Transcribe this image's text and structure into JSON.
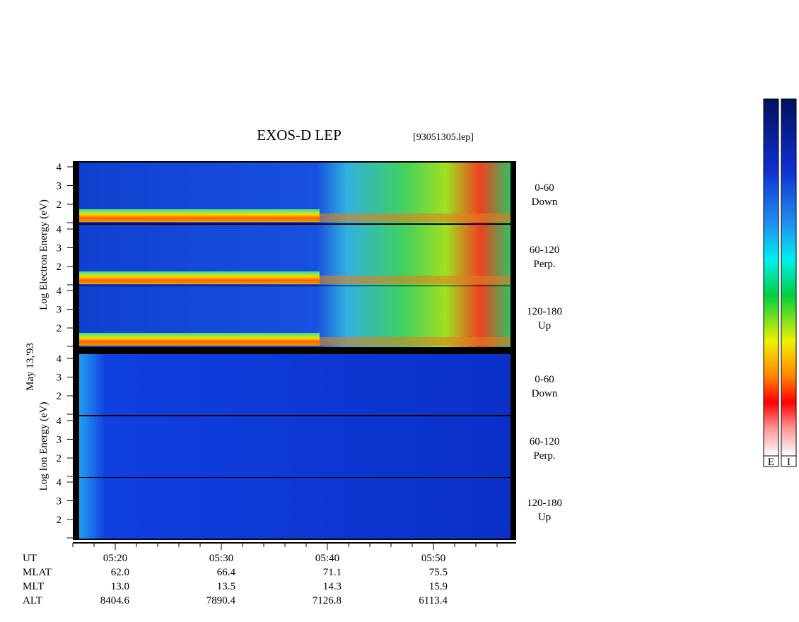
{
  "header": {
    "title": "EXOS-D LEP",
    "file": "[93051305.lep]"
  },
  "date": "May 13,'93",
  "groups": [
    {
      "axis_label": "Log Electron Energy (eV)",
      "panels": [
        {
          "ticks": [
            "4",
            "3",
            "2"
          ],
          "label": "0-60",
          "sublabel": "Down"
        },
        {
          "ticks": [
            "4",
            "3",
            "2"
          ],
          "label": "60-120",
          "sublabel": "Perp."
        },
        {
          "ticks": [
            "4",
            "3",
            "2"
          ],
          "label": "120-180",
          "sublabel": "Up"
        }
      ]
    },
    {
      "axis_label": "Log Ion Energy (eV)",
      "panels": [
        {
          "ticks": [
            "4",
            "3",
            "2"
          ],
          "label": "0-60",
          "sublabel": "Down"
        },
        {
          "ticks": [
            "4",
            "3",
            "2"
          ],
          "label": "60-120",
          "sublabel": "Perp."
        },
        {
          "ticks": [
            "4",
            "3",
            "2"
          ],
          "label": "120-180",
          "sublabel": "Up"
        }
      ]
    }
  ],
  "time_axis": {
    "label": "UT",
    "ticks": [
      "05:20",
      "05:30",
      "05:40",
      "05:50"
    ]
  },
  "rows": [
    {
      "label": "MLAT",
      "values": [
        "62.0",
        "66.4",
        "71.1",
        "75.5"
      ]
    },
    {
      "label": "MLT",
      "values": [
        "13.0",
        "13.5",
        "14.3",
        "15.9"
      ]
    },
    {
      "label": "ALT",
      "values": [
        "8404.6",
        "7890.4",
        "7126.8",
        "6113.4"
      ]
    }
  ],
  "colorbars": [
    "E",
    "I"
  ]
}
